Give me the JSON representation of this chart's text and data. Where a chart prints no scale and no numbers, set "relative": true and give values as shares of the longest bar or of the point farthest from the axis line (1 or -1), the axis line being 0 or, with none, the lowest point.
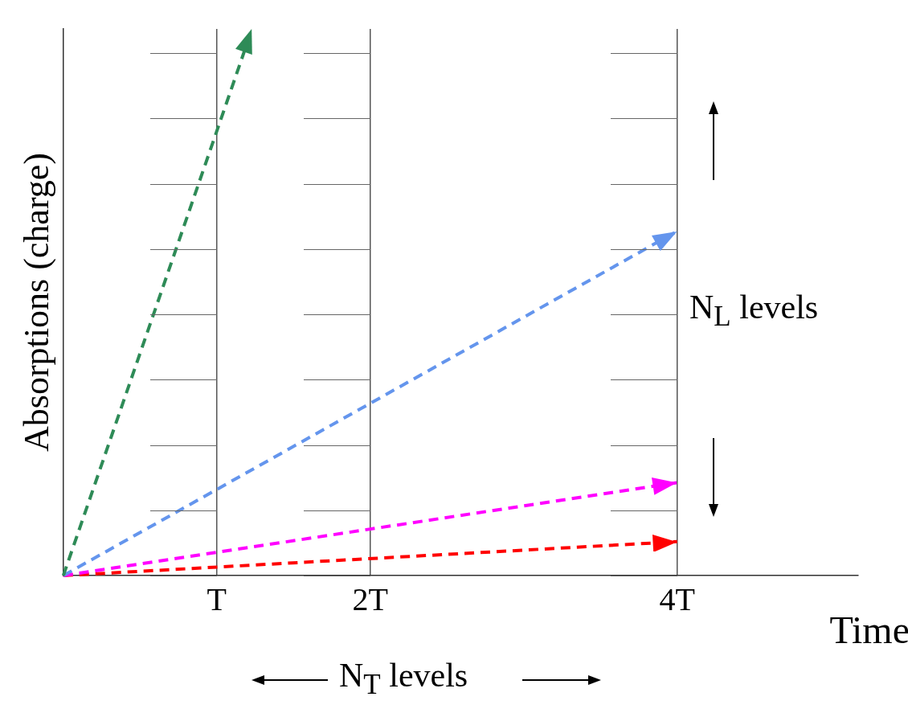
{
  "chart_data": {
    "type": "line",
    "xlabel": "Time",
    "ylabel": "Absorptions (charge)",
    "relative": true,
    "xlim": [
      0,
      5.18
    ],
    "xticks": [
      {
        "value": 1,
        "label": "T"
      },
      {
        "value": 2,
        "label": "2T"
      },
      {
        "value": 4,
        "label": "4T"
      }
    ],
    "grid": "x",
    "marker": "none",
    "line_style": "dashed",
    "annotations": [
      "N$_{L}$ levels",
      "N$_{T}$ levels"
    ],
    "series": [
      {
        "color": "#2e8b57",
        "x": [
          0,
          1.23
        ],
        "values": [
          0,
          1
        ]
      },
      {
        "color": "#6495ed",
        "x": [
          0,
          4
        ],
        "values": [
          0,
          0.63
        ]
      },
      {
        "color": "#ff00ff",
        "x": [
          0,
          4
        ],
        "values": [
          0,
          0.17
        ]
      },
      {
        "color": "#ff0000",
        "x": [
          0,
          4
        ],
        "values": [
          0,
          0.062
        ]
      }
    ]
  }
}
